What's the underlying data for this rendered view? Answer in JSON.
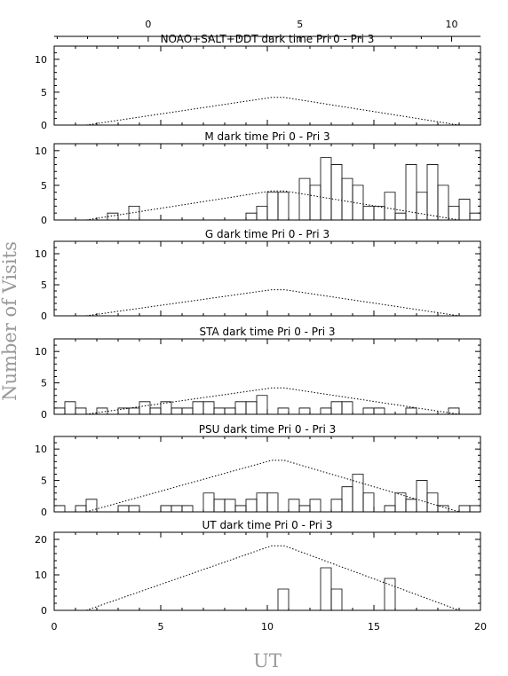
{
  "chart_data": {
    "type": "histogram",
    "xlabel": "UT",
    "ylabel": "Number of Visits",
    "xlim": [
      0,
      20
    ],
    "x_ticks": [
      0,
      5,
      10,
      15,
      20
    ],
    "bin_width": 0.5,
    "top_axis": {
      "xlim": [
        -3.1,
        10.95
      ],
      "ticks": [
        0,
        5,
        10
      ]
    },
    "panels": [
      {
        "title": "NOAO+SALT+DDT dark time Pri 0 - Pri 3",
        "ylim": [
          0,
          12
        ],
        "y_ticks": [
          0,
          5,
          10
        ],
        "bins": [],
        "dark_time_curve": [
          [
            1.5,
            0
          ],
          [
            10.2,
            4.2
          ],
          [
            10.8,
            4.2
          ],
          [
            19,
            0
          ]
        ]
      },
      {
        "title": "M    dark time Pri 0 - Pri 3",
        "ylim": [
          0,
          11
        ],
        "y_ticks": [
          0,
          5,
          10
        ],
        "bins": [
          [
            2.5,
            1
          ],
          [
            3.5,
            2
          ],
          [
            9.0,
            1
          ],
          [
            9.5,
            2
          ],
          [
            10.0,
            4
          ],
          [
            10.5,
            4
          ],
          [
            11.5,
            6
          ],
          [
            12.0,
            5
          ],
          [
            12.5,
            9
          ],
          [
            13.0,
            8
          ],
          [
            13.5,
            6
          ],
          [
            14.0,
            5
          ],
          [
            14.5,
            2
          ],
          [
            15.0,
            2
          ],
          [
            15.5,
            4
          ],
          [
            16.0,
            1
          ],
          [
            16.5,
            8
          ],
          [
            17.0,
            4
          ],
          [
            17.5,
            8
          ],
          [
            18.0,
            5
          ],
          [
            18.5,
            2
          ],
          [
            19.0,
            3
          ],
          [
            19.5,
            1
          ]
        ],
        "dark_time_curve": [
          [
            1.5,
            0
          ],
          [
            10.2,
            4.2
          ],
          [
            10.8,
            4.2
          ],
          [
            19,
            0
          ]
        ]
      },
      {
        "title": "G    dark time Pri 0 - Pri 3",
        "ylim": [
          0,
          12
        ],
        "y_ticks": [
          0,
          5,
          10
        ],
        "bins": [],
        "dark_time_curve": [
          [
            1.5,
            0
          ],
          [
            10.2,
            4.2
          ],
          [
            10.8,
            4.2
          ],
          [
            19,
            0
          ]
        ]
      },
      {
        "title": "STA     dark time Pri 0 - Pri 3",
        "ylim": [
          0,
          12
        ],
        "y_ticks": [
          0,
          5,
          10
        ],
        "bins": [
          [
            0,
            1
          ],
          [
            0.5,
            2
          ],
          [
            1.0,
            1
          ],
          [
            2.0,
            1
          ],
          [
            3.0,
            1
          ],
          [
            3.5,
            1
          ],
          [
            4.0,
            2
          ],
          [
            4.5,
            1
          ],
          [
            5.0,
            2
          ],
          [
            5.5,
            1
          ],
          [
            6.0,
            1
          ],
          [
            6.5,
            2
          ],
          [
            7.0,
            2
          ],
          [
            7.5,
            1
          ],
          [
            8.0,
            1
          ],
          [
            8.5,
            2
          ],
          [
            9.0,
            2
          ],
          [
            9.5,
            3
          ],
          [
            10.5,
            1
          ],
          [
            11.5,
            1
          ],
          [
            12.5,
            1
          ],
          [
            13.0,
            2
          ],
          [
            13.5,
            2
          ],
          [
            14.5,
            1
          ],
          [
            15.0,
            1
          ],
          [
            16.5,
            1
          ],
          [
            18.5,
            1
          ]
        ],
        "dark_time_curve": [
          [
            1.5,
            0
          ],
          [
            10.2,
            4.2
          ],
          [
            10.8,
            4.2
          ],
          [
            19,
            0
          ]
        ]
      },
      {
        "title": "PSU    dark time Pri 0 - Pri 3",
        "ylim": [
          0,
          12
        ],
        "y_ticks": [
          0,
          5,
          10
        ],
        "bins": [
          [
            0,
            1
          ],
          [
            1.0,
            1
          ],
          [
            1.5,
            2
          ],
          [
            3.0,
            1
          ],
          [
            3.5,
            1
          ],
          [
            5.0,
            1
          ],
          [
            5.5,
            1
          ],
          [
            6.0,
            1
          ],
          [
            7.0,
            3
          ],
          [
            7.5,
            2
          ],
          [
            8.0,
            2
          ],
          [
            8.5,
            1
          ],
          [
            9.0,
            2
          ],
          [
            9.5,
            3
          ],
          [
            10.0,
            3
          ],
          [
            11.0,
            2
          ],
          [
            11.5,
            1
          ],
          [
            12.0,
            2
          ],
          [
            13.0,
            2
          ],
          [
            13.5,
            4
          ],
          [
            14.0,
            6
          ],
          [
            14.5,
            3
          ],
          [
            15.5,
            1
          ],
          [
            16.0,
            3
          ],
          [
            16.5,
            2
          ],
          [
            17.0,
            5
          ],
          [
            17.5,
            3
          ],
          [
            18.0,
            1
          ],
          [
            19.0,
            1
          ],
          [
            19.5,
            1
          ]
        ],
        "dark_time_curve": [
          [
            1.5,
            0
          ],
          [
            10.2,
            8.2
          ],
          [
            10.8,
            8.2
          ],
          [
            19,
            0
          ]
        ]
      },
      {
        "title": "UT    dark time Pri 0 - Pri 3",
        "ylim": [
          0,
          22
        ],
        "y_ticks": [
          0,
          10,
          20
        ],
        "bins": [
          [
            10.5,
            6
          ],
          [
            12.5,
            12
          ],
          [
            13.0,
            6
          ],
          [
            15.5,
            9
          ]
        ],
        "dark_time_curve": [
          [
            1.5,
            0
          ],
          [
            10.2,
            18.2
          ],
          [
            10.8,
            18.2
          ],
          [
            19,
            0
          ]
        ]
      }
    ]
  }
}
